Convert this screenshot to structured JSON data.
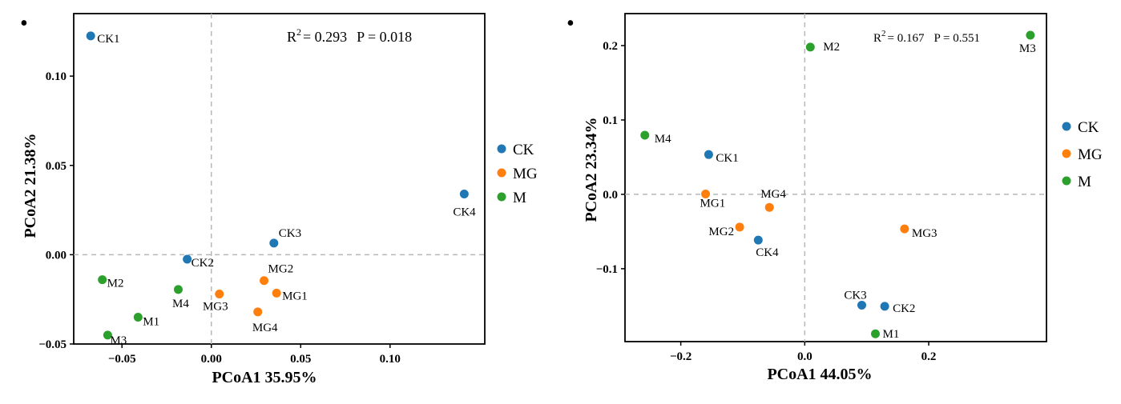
{
  "chart_data": [
    {
      "type": "scatter",
      "panel_marker": "•",
      "xlabel": "PCoA1 35.95%",
      "ylabel": "PCoA2 21.38%",
      "xlim": [
        -0.077,
        0.153
      ],
      "ylim": [
        -0.05,
        0.135
      ],
      "xticks": [
        -0.05,
        0.0,
        0.05,
        0.1
      ],
      "xtick_labels": [
        "−0.05",
        "0.00",
        "0.05",
        "0.10"
      ],
      "yticks": [
        -0.05,
        0.0,
        0.05,
        0.1
      ],
      "ytick_labels": [
        "−0.05",
        "0.00",
        "0.05",
        "0.10"
      ],
      "reference_lines": {
        "x": 0,
        "y": 0,
        "style": "dashed"
      },
      "annotation": {
        "r_label": "R",
        "r_exp": "2",
        "r_value": "= 0.293",
        "p_text": "P = 0.018"
      },
      "legend": {
        "position": "right",
        "entries": [
          "CK",
          "MG",
          "M"
        ]
      },
      "series": [
        {
          "name": "CK",
          "color": "#1f77b4",
          "points": [
            {
              "label": "CK1",
              "x": -0.0675,
              "y": 0.1225
            },
            {
              "label": "CK2",
              "x": -0.0135,
              "y": -0.0025
            },
            {
              "label": "CK3",
              "x": 0.035,
              "y": 0.0065
            },
            {
              "label": "CK4",
              "x": 0.1415,
              "y": 0.034
            }
          ]
        },
        {
          "name": "MG",
          "color": "#ff7f0e",
          "points": [
            {
              "label": "MG1",
              "x": 0.0365,
              "y": -0.0215
            },
            {
              "label": "MG2",
              "x": 0.0295,
              "y": -0.0145
            },
            {
              "label": "MG3",
              "x": 0.0045,
              "y": -0.022
            },
            {
              "label": "MG4",
              "x": 0.026,
              "y": -0.032
            }
          ]
        },
        {
          "name": "M",
          "color": "#2ca02c",
          "points": [
            {
              "label": "M1",
              "x": -0.041,
              "y": -0.035
            },
            {
              "label": "M2",
              "x": -0.061,
              "y": -0.014
            },
            {
              "label": "M3",
              "x": -0.058,
              "y": -0.045
            },
            {
              "label": "M4",
              "x": -0.0185,
              "y": -0.0195
            }
          ]
        }
      ]
    },
    {
      "type": "scatter",
      "panel_marker": "•",
      "xlabel": "PCoA1  44.05%",
      "ylabel": "PCoA2  23.34%",
      "xlim": [
        -0.29,
        0.39
      ],
      "ylim": [
        -0.198,
        0.243
      ],
      "xticks": [
        -0.2,
        0.0,
        0.2
      ],
      "xtick_labels": [
        "−0.2",
        "0.0",
        "0.2"
      ],
      "yticks": [
        -0.1,
        0.0,
        0.1,
        0.2
      ],
      "ytick_labels": [
        "−0.1",
        "0.0",
        "0.1",
        "0.2"
      ],
      "reference_lines": {
        "x": 0,
        "y": 0,
        "style": "dashed"
      },
      "annotation": {
        "r_label": "R",
        "r_exp": "2",
        "r_value": "= 0.167",
        "p_text": "P = 0.551"
      },
      "legend": {
        "position": "right",
        "entries": [
          "CK",
          "MG",
          "M"
        ]
      },
      "series": [
        {
          "name": "CK",
          "color": "#1f77b4",
          "points": [
            {
              "label": "CK1",
              "x": -0.155,
              "y": 0.0535
            },
            {
              "label": "CK2",
              "x": 0.129,
              "y": -0.1505
            },
            {
              "label": "CK3",
              "x": 0.092,
              "y": -0.149
            },
            {
              "label": "CK4",
              "x": -0.075,
              "y": -0.0615
            }
          ]
        },
        {
          "name": "MG",
          "color": "#ff7f0e",
          "points": [
            {
              "label": "MG1",
              "x": -0.16,
              "y": 0.0005
            },
            {
              "label": "MG2",
              "x": -0.105,
              "y": -0.044
            },
            {
              "label": "MG3",
              "x": 0.161,
              "y": -0.0465
            },
            {
              "label": "MG4",
              "x": -0.057,
              "y": -0.0175
            }
          ]
        },
        {
          "name": "M",
          "color": "#2ca02c",
          "points": [
            {
              "label": "M1",
              "x": 0.114,
              "y": -0.1875
            },
            {
              "label": "M2",
              "x": 0.009,
              "y": 0.198
            },
            {
              "label": "M3",
              "x": 0.364,
              "y": 0.214
            },
            {
              "label": "M4",
              "x": -0.258,
              "y": 0.0795
            }
          ]
        }
      ]
    }
  ]
}
